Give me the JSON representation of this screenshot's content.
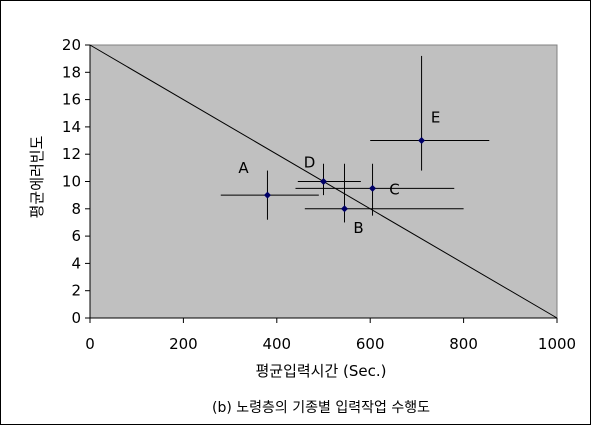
{
  "chart_data": {
    "type": "scatter",
    "title": "",
    "caption": "(b) 노령층의 기종별 입력작업 수행도",
    "xlabel": "평균입력시간 (Sec.)",
    "ylabel": "평균에러빈도",
    "xlim": [
      0,
      1000
    ],
    "ylim": [
      0,
      20
    ],
    "xticks": [
      "0",
      "200",
      "400",
      "600",
      "800",
      "1000"
    ],
    "yticks": [
      "0",
      "2",
      "4",
      "6",
      "8",
      "10",
      "12",
      "14",
      "16",
      "18",
      "20"
    ],
    "grid": false,
    "plot_background": "#c0c0c0",
    "marker_color": "#000066",
    "points": [
      {
        "label": "A",
        "x": 380,
        "y": 9,
        "x_err": [
          280,
          490
        ],
        "y_err": [
          7.2,
          10.8
        ]
      },
      {
        "label": "B",
        "x": 545,
        "y": 8,
        "x_err": [
          460,
          800
        ],
        "y_err": [
          7,
          11.3
        ]
      },
      {
        "label": "C",
        "x": 605,
        "y": 9.5,
        "x_err": [
          440,
          780
        ],
        "y_err": [
          7.5,
          11.3
        ]
      },
      {
        "label": "D",
        "x": 500,
        "y": 10,
        "x_err": [
          445,
          580
        ],
        "y_err": [
          9,
          11.3
        ]
      },
      {
        "label": "E",
        "x": 710,
        "y": 13,
        "x_err": [
          600,
          855
        ],
        "y_err": [
          10.8,
          19.2
        ]
      }
    ],
    "reference_line": {
      "x1": 0,
      "y1": 20,
      "x2": 1000,
      "y2": 0
    }
  }
}
